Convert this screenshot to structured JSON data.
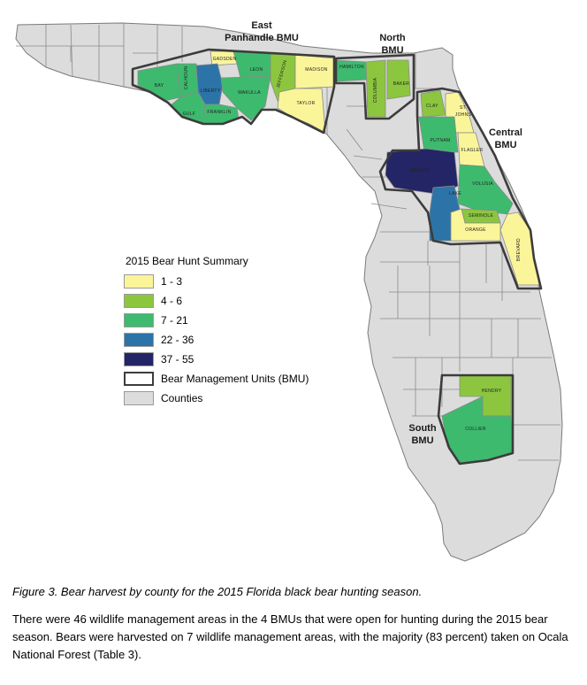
{
  "colors": {
    "c1_3": "#fbf59a",
    "c4_6": "#8cc63f",
    "c7_21": "#3dba6e",
    "c22_36": "#2c74a8",
    "c37_55": "#232566",
    "county": "#dcdcdc",
    "border": "#3c3c3c"
  },
  "bmu_labels": {
    "east_panhandle": [
      "East",
      "Panhandle BMU"
    ],
    "north": [
      "North",
      "BMU"
    ],
    "central": [
      "Central",
      "BMU"
    ],
    "south": [
      "South",
      "BMU"
    ]
  },
  "counties": [
    {
      "name": "BAY",
      "harvest_class": "7 - 21"
    },
    {
      "name": "CALHOUN",
      "harvest_class": "7 - 21"
    },
    {
      "name": "GULF",
      "harvest_class": "7 - 21"
    },
    {
      "name": "GADSDEN",
      "harvest_class": "1 - 3"
    },
    {
      "name": "LIBERTY",
      "harvest_class": "22 - 36"
    },
    {
      "name": "FRANKLIN",
      "harvest_class": "7 - 21"
    },
    {
      "name": "LEON",
      "harvest_class": "7 - 21"
    },
    {
      "name": "WAKULLA",
      "harvest_class": "7 - 21"
    },
    {
      "name": "JEFFERSON",
      "harvest_class": "4 - 6"
    },
    {
      "name": "MADISON",
      "harvest_class": "1 - 3"
    },
    {
      "name": "TAYLOR",
      "harvest_class": "1 - 3"
    },
    {
      "name": "HAMILTON",
      "harvest_class": "7 - 21"
    },
    {
      "name": "COLUMBIA",
      "harvest_class": "4 - 6"
    },
    {
      "name": "BAKER",
      "harvest_class": "4 - 6"
    },
    {
      "name": "CLAY",
      "harvest_class": "4 - 6"
    },
    {
      "name": "ST. JOHNS",
      "harvest_class": "1 - 3"
    },
    {
      "name": "PUTNAM",
      "harvest_class": "7 - 21"
    },
    {
      "name": "FLAGLER",
      "harvest_class": "1 - 3"
    },
    {
      "name": "MARION",
      "harvest_class": "37 - 55"
    },
    {
      "name": "LAKE",
      "harvest_class": "22 - 36"
    },
    {
      "name": "VOLUSIA",
      "harvest_class": "7 - 21"
    },
    {
      "name": "SEMINOLE",
      "harvest_class": "4 - 6"
    },
    {
      "name": "ORANGE",
      "harvest_class": "1 - 3"
    },
    {
      "name": "BREVARD",
      "harvest_class": "1 - 3"
    },
    {
      "name": "HENDRY",
      "harvest_class": "4 - 6"
    },
    {
      "name": "COLLIER",
      "harvest_class": "7 - 21"
    }
  ],
  "legend": {
    "title": "2015 Bear Hunt Summary",
    "items": [
      {
        "label": "1 - 3",
        "color": "#fbf59a"
      },
      {
        "label": "4 - 6",
        "color": "#8cc63f"
      },
      {
        "label": "7 - 21",
        "color": "#3dba6e"
      },
      {
        "label": "22 - 36",
        "color": "#2c74a8"
      },
      {
        "label": "37 - 55",
        "color": "#232566"
      }
    ],
    "bmu_label": "Bear Management Units (BMU)",
    "counties_label": "Counties"
  },
  "caption": "Figure 3.  Bear harvest by county for the 2015 Florida black bear hunting season.",
  "paragraph": "There were 46 wildlife management areas in the 4 BMUs that were open for hunting during the 2015 bear season.  Bears were harvested on 7 wildlife management areas, with the majority (83 percent) taken on Ocala National Forest (Table 3)."
}
